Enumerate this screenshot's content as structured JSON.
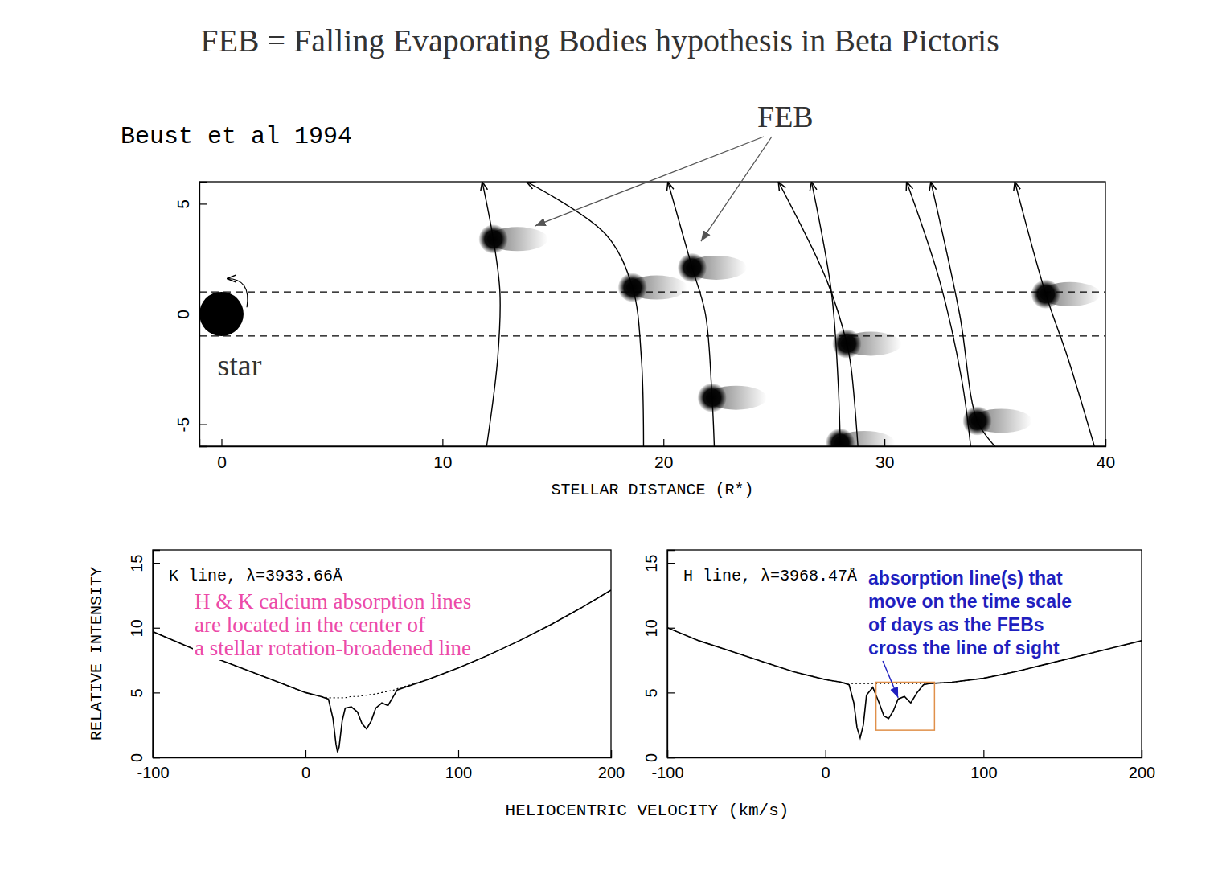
{
  "header": {
    "title": "FEB = Falling Evaporating Bodies hypothesis in Beta Pictoris"
  },
  "chart_data": [
    {
      "type": "scatter",
      "title": "Beust et al 1994",
      "x_label": "STELLAR DISTANCE (R*)",
      "xlim": [
        -1,
        40
      ],
      "xticks": [
        0,
        10,
        20,
        30,
        40
      ],
      "ylim": [
        -6,
        6
      ],
      "yticks": [
        -5,
        0,
        5
      ],
      "star": {
        "label": "star",
        "x": 0,
        "y": 0,
        "radius": 1,
        "color": "#000000"
      },
      "line_of_sight": {
        "values": [
          -1,
          1
        ],
        "line_style": "dashed"
      },
      "annotations": [
        {
          "text": "FEB",
          "arrow_to": {
            "x": [
              14.2,
              21.7
            ],
            "y": [
              4.0,
              3.3
            ]
          }
        }
      ],
      "series": [
        {
          "type": "scatter",
          "marker": "comet",
          "color": "#000000",
          "x": [
            12.3,
            18.6,
            21.3,
            22.2,
            28.3,
            28.0,
            34.2,
            37.3
          ],
          "values": [
            3.4,
            1.2,
            2.1,
            -3.8,
            -1.35,
            -5.85,
            -4.85,
            0.9
          ]
        },
        {
          "type": "line",
          "line_style": "solid",
          "color": "#000000",
          "x": [
            12.0,
            12.5,
            12.6,
            12.3,
            11.8
          ],
          "values": [
            -6,
            -2,
            1,
            3.4,
            6
          ]
        },
        {
          "type": "line",
          "line_style": "solid",
          "color": "#000000",
          "x": [
            19.1,
            19.0,
            18.6,
            17.4,
            13.8
          ],
          "values": [
            -6,
            -2,
            1.2,
            3.6,
            6
          ]
        },
        {
          "type": "line",
          "line_style": "solid",
          "color": "#000000",
          "x": [
            22.3,
            22.2,
            21.9,
            21.3,
            20.2
          ],
          "values": [
            -6,
            -3.8,
            0,
            2.1,
            6
          ]
        },
        {
          "type": "line",
          "line_style": "solid",
          "color": "#000000",
          "x": [
            28.8,
            28.5,
            28.3,
            27.4,
            25.2
          ],
          "values": [
            -6,
            -2.5,
            -1.35,
            1.5,
            6
          ]
        },
        {
          "type": "line",
          "line_style": "solid",
          "color": "#000000",
          "x": [
            28.0,
            27.9,
            27.6,
            26.7
          ],
          "values": [
            -5.85,
            -3,
            1,
            6
          ]
        },
        {
          "type": "line",
          "line_style": "solid",
          "color": "#000000",
          "x": [
            33.9,
            33.5,
            32.5,
            31.0
          ],
          "values": [
            -6,
            -3,
            1.5,
            6
          ]
        },
        {
          "type": "line",
          "line_style": "solid",
          "color": "#000000",
          "x": [
            35.0,
            34.2,
            33.4,
            32.1
          ],
          "values": [
            -6,
            -4.85,
            0,
            6
          ]
        },
        {
          "type": "line",
          "line_style": "solid",
          "color": "#000000",
          "x": [
            39.5,
            38.3,
            37.3,
            35.9
          ],
          "values": [
            -6,
            -2,
            0.9,
            6
          ]
        }
      ]
    },
    {
      "type": "line",
      "title": "K line, λ=3933.66Å",
      "x_label": "HELIOCENTRIC VELOCITY (km/s)",
      "y_label": "RELATIVE INTENSITY",
      "xlim": [
        -100,
        200
      ],
      "xticks": [
        -100,
        0,
        100,
        200
      ],
      "ylim": [
        0,
        16
      ],
      "yticks": [
        0,
        5,
        10,
        15
      ],
      "annotations": [
        {
          "text": [
            "H & K calcium absorption lines",
            "are located in the center of",
            "a stellar rotation-broadened line"
          ],
          "color": "#ec4aa8"
        }
      ],
      "series": [
        {
          "line_style": "solid",
          "color": "#000000",
          "x": [
            -100,
            -80,
            -60,
            -40,
            -20,
            0,
            10,
            15,
            18,
            20,
            21,
            22,
            24,
            26,
            30,
            34,
            37,
            40,
            43,
            46,
            50,
            54,
            58,
            60,
            80,
            100,
            120,
            140,
            160,
            180,
            200
          ],
          "values": [
            9.7,
            8.7,
            7.7,
            6.8,
            5.9,
            5.0,
            4.7,
            4.5,
            3.0,
            1.0,
            0.4,
            0.8,
            2.8,
            3.8,
            3.9,
            3.5,
            2.6,
            2.2,
            2.8,
            3.8,
            4.2,
            4.0,
            4.8,
            5.2,
            6.0,
            6.9,
            7.9,
            9.0,
            10.2,
            11.5,
            12.9
          ]
        },
        {
          "line_style": "dotted",
          "color": "#000000",
          "x": [
            -100,
            -80,
            -60,
            -40,
            -20,
            0,
            10,
            15,
            18,
            20,
            21,
            22,
            24,
            26,
            30,
            34,
            37,
            40,
            43,
            46,
            50,
            54,
            58,
            60,
            80,
            100,
            120,
            140,
            160,
            180,
            200
          ],
          "values": [
            9.7,
            8.7,
            7.7,
            6.8,
            5.9,
            5.0,
            4.7,
            4.6,
            4.6,
            4.6,
            4.6,
            4.6,
            4.6,
            4.6,
            4.7,
            4.7,
            4.75,
            4.8,
            4.85,
            4.9,
            5.0,
            5.1,
            5.2,
            5.3,
            6.0,
            6.9,
            7.9,
            9.0,
            10.2,
            11.5,
            12.9
          ]
        }
      ]
    },
    {
      "type": "line",
      "title": "H line, λ=3968.47Å",
      "xlim": [
        -100,
        200
      ],
      "xticks": [
        -100,
        0,
        100,
        200
      ],
      "ylim": [
        0,
        16
      ],
      "yticks": [
        0,
        5,
        10,
        15
      ],
      "highlight": {
        "x": [
          32,
          69
        ],
        "y": [
          2.1,
          5.8
        ],
        "color": "#e0904a"
      },
      "annotations": [
        {
          "text": [
            "absorption line(s) that",
            "move on the time scale",
            "of days as the FEBs",
            "cross the line of sight"
          ],
          "color": "#1f1fbf",
          "arrow_to": {
            "x": 46,
            "y": 4.6
          }
        }
      ],
      "series": [
        {
          "line_style": "solid",
          "color": "#000000",
          "x": [
            -100,
            -80,
            -60,
            -40,
            -20,
            0,
            10,
            15,
            18,
            20,
            22,
            24,
            26,
            30,
            34,
            37,
            40,
            43,
            46,
            50,
            54,
            58,
            62,
            66,
            80,
            100,
            120,
            140,
            160,
            180,
            200
          ],
          "values": [
            10.0,
            9.0,
            8.2,
            7.4,
            6.6,
            6.0,
            5.8,
            5.6,
            4.2,
            2.3,
            1.5,
            2.5,
            4.8,
            5.4,
            4.2,
            3.2,
            3.0,
            3.6,
            4.5,
            4.7,
            4.2,
            5.0,
            5.6,
            5.7,
            5.8,
            6.1,
            6.6,
            7.2,
            7.8,
            8.4,
            9.0
          ]
        },
        {
          "line_style": "dotted",
          "color": "#000000",
          "x": [
            -100,
            -80,
            -60,
            -40,
            -20,
            0,
            10,
            15,
            18,
            20,
            22,
            24,
            26,
            30,
            34,
            37,
            40,
            43,
            46,
            50,
            54,
            58,
            62,
            66,
            80,
            100,
            120,
            140,
            160,
            180,
            200
          ],
          "values": [
            10.0,
            9.0,
            8.2,
            7.4,
            6.6,
            6.0,
            5.8,
            5.7,
            5.7,
            5.7,
            5.7,
            5.7,
            5.7,
            5.7,
            5.7,
            5.7,
            5.7,
            5.7,
            5.7,
            5.7,
            5.7,
            5.7,
            5.7,
            5.7,
            5.8,
            6.1,
            6.6,
            7.2,
            7.8,
            8.4,
            9.0
          ]
        }
      ]
    }
  ]
}
